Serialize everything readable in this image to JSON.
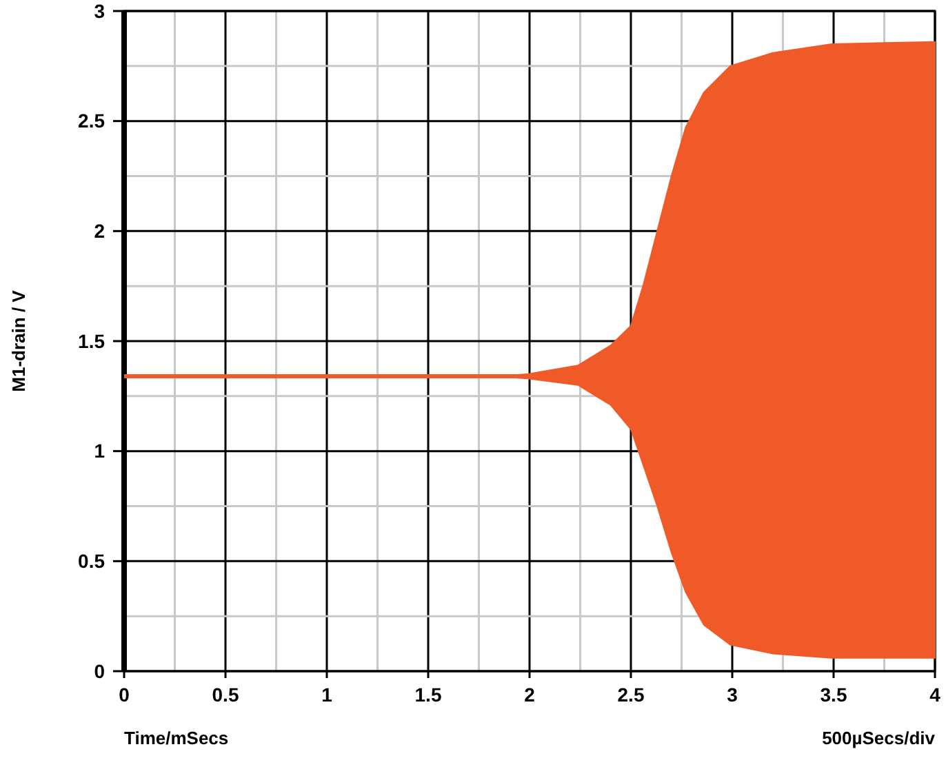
{
  "chart_data": {
    "type": "line",
    "xlabel": "Time/mSecs",
    "ylabel": "M1-drain / V",
    "annotations": [
      "500µSecs/div"
    ],
    "xlim": [
      0,
      4
    ],
    "ylim": [
      0,
      3
    ],
    "xticks": [
      0,
      {
        "value": 0.25,
        "label": null
      },
      0.5,
      {
        "value": 0.75,
        "label": null
      },
      1,
      {
        "value": 1.25,
        "label": null
      },
      1.5,
      {
        "value": 1.75,
        "label": null
      },
      2,
      {
        "value": 2.25,
        "label": null
      },
      2.5,
      {
        "value": 2.75,
        "label": null
      },
      3,
      {
        "value": 3.25,
        "label": null
      },
      3.5,
      {
        "value": 3.75,
        "label": null
      },
      4
    ],
    "yticks": [
      0,
      {
        "value": 0.25,
        "label": null
      },
      0.5,
      {
        "value": 0.75,
        "label": null
      },
      1,
      {
        "value": 1.25,
        "label": null
      },
      1.5,
      {
        "value": 1.75,
        "label": null
      },
      2,
      {
        "value": 2.25,
        "label": null
      },
      2.5,
      {
        "value": 2.75,
        "label": null
      },
      3
    ],
    "grid": true,
    "series": [
      {
        "color": "#f05a28",
        "x": [
          0,
          1.84,
          1.99,
          2.24,
          2.4,
          2.5,
          2.56,
          2.63,
          2.7,
          2.77,
          2.86,
          2.99,
          3.2,
          3.49,
          4
        ],
        "values": [
          1.34,
          1.34,
          1.34,
          1.34,
          1.34,
          1.34,
          1.34,
          1.34,
          1.34,
          1.34,
          1.34,
          1.34,
          1.34,
          1.34,
          1.34
        ],
        "lower": [
          1.34,
          1.34,
          1.33,
          1.3,
          1.21,
          1.1,
          0.94,
          0.75,
          0.54,
          0.36,
          0.21,
          0.12,
          0.08,
          0.06,
          0.06
        ],
        "upper": [
          1.34,
          1.34,
          1.35,
          1.39,
          1.48,
          1.57,
          1.75,
          2.0,
          2.25,
          2.47,
          2.63,
          2.75,
          2.81,
          2.85,
          2.86
        ]
      }
    ]
  }
}
